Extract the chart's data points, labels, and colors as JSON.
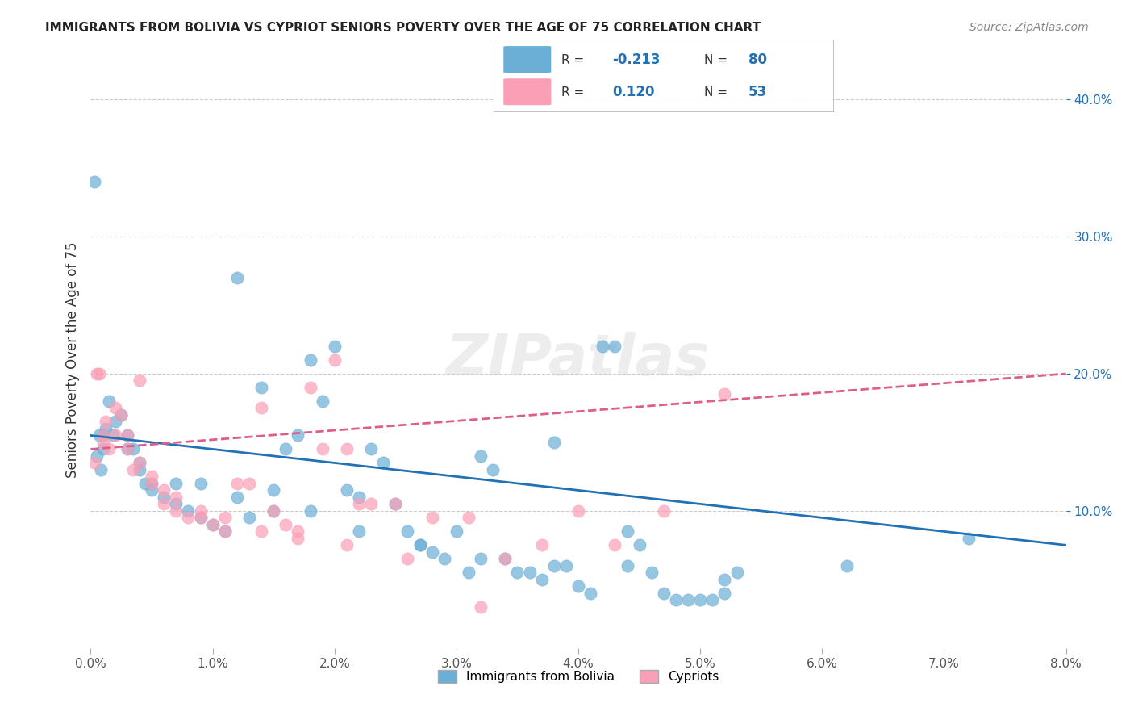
{
  "title": "IMMIGRANTS FROM BOLIVIA VS CYPRIOT SENIORS POVERTY OVER THE AGE OF 75 CORRELATION CHART",
  "source": "Source: ZipAtlas.com",
  "ylabel": "Seniors Poverty Over the Age of 75",
  "xlabel_ticks": [
    "0.0%",
    "1.0%",
    "2.0%",
    "3.0%",
    "4.0%",
    "5.0%",
    "6.0%",
    "7.0%",
    "8.0%"
  ],
  "ylabel_right_ticks": [
    "10.0%",
    "20.0%",
    "30.0%",
    "40.0%"
  ],
  "xmin": 0.0,
  "xmax": 0.08,
  "ymin": 0.0,
  "ymax": 0.42,
  "legend_label_blue": "Immigrants from Bolivia",
  "legend_label_pink": "Cypriots",
  "R_blue": -0.213,
  "N_blue": 80,
  "R_pink": 0.12,
  "N_pink": 53,
  "color_blue": "#6baed6",
  "color_pink": "#fa9fb5",
  "color_text_blue": "#2171b5",
  "color_text_pink": "#e05c8a",
  "title_fontsize": 11,
  "watermark": "ZIPatlas",
  "blue_scatter_x": [
    0.0005,
    0.001,
    0.0008,
    0.0012,
    0.0015,
    0.002,
    0.0025,
    0.003,
    0.0035,
    0.004,
    0.0045,
    0.005,
    0.006,
    0.007,
    0.008,
    0.009,
    0.01,
    0.011,
    0.012,
    0.013,
    0.014,
    0.015,
    0.016,
    0.017,
    0.018,
    0.019,
    0.02,
    0.021,
    0.022,
    0.023,
    0.024,
    0.025,
    0.026,
    0.027,
    0.028,
    0.029,
    0.03,
    0.031,
    0.032,
    0.033,
    0.034,
    0.035,
    0.036,
    0.037,
    0.038,
    0.039,
    0.04,
    0.041,
    0.042,
    0.043,
    0.044,
    0.045,
    0.046,
    0.047,
    0.048,
    0.049,
    0.05,
    0.051,
    0.052,
    0.053,
    0.0003,
    0.0007,
    0.001,
    0.0018,
    0.003,
    0.004,
    0.005,
    0.007,
    0.009,
    0.012,
    0.015,
    0.018,
    0.022,
    0.027,
    0.032,
    0.038,
    0.044,
    0.052,
    0.062,
    0.072
  ],
  "blue_scatter_y": [
    0.14,
    0.155,
    0.13,
    0.16,
    0.18,
    0.165,
    0.17,
    0.155,
    0.145,
    0.13,
    0.12,
    0.115,
    0.11,
    0.105,
    0.1,
    0.095,
    0.09,
    0.085,
    0.27,
    0.095,
    0.19,
    0.115,
    0.145,
    0.155,
    0.21,
    0.18,
    0.22,
    0.115,
    0.11,
    0.145,
    0.135,
    0.105,
    0.085,
    0.075,
    0.07,
    0.065,
    0.085,
    0.055,
    0.14,
    0.13,
    0.065,
    0.055,
    0.055,
    0.05,
    0.15,
    0.06,
    0.045,
    0.04,
    0.22,
    0.22,
    0.085,
    0.075,
    0.055,
    0.04,
    0.035,
    0.035,
    0.035,
    0.035,
    0.04,
    0.055,
    0.34,
    0.155,
    0.145,
    0.155,
    0.145,
    0.135,
    0.12,
    0.12,
    0.12,
    0.11,
    0.1,
    0.1,
    0.085,
    0.075,
    0.065,
    0.06,
    0.06,
    0.05,
    0.06,
    0.08
  ],
  "pink_scatter_x": [
    0.0003,
    0.0005,
    0.0007,
    0.001,
    0.0012,
    0.0015,
    0.002,
    0.0025,
    0.003,
    0.0035,
    0.004,
    0.005,
    0.006,
    0.007,
    0.008,
    0.009,
    0.01,
    0.011,
    0.012,
    0.013,
    0.014,
    0.015,
    0.016,
    0.017,
    0.018,
    0.019,
    0.02,
    0.021,
    0.022,
    0.023,
    0.025,
    0.028,
    0.031,
    0.034,
    0.037,
    0.04,
    0.043,
    0.047,
    0.052,
    0.001,
    0.002,
    0.003,
    0.004,
    0.005,
    0.006,
    0.007,
    0.009,
    0.011,
    0.014,
    0.017,
    0.021,
    0.026,
    0.032
  ],
  "pink_scatter_y": [
    0.135,
    0.2,
    0.2,
    0.155,
    0.165,
    0.145,
    0.175,
    0.17,
    0.155,
    0.13,
    0.195,
    0.12,
    0.105,
    0.1,
    0.095,
    0.095,
    0.09,
    0.085,
    0.12,
    0.12,
    0.175,
    0.1,
    0.09,
    0.085,
    0.19,
    0.145,
    0.21,
    0.145,
    0.105,
    0.105,
    0.105,
    0.095,
    0.095,
    0.065,
    0.075,
    0.1,
    0.075,
    0.1,
    0.185,
    0.15,
    0.155,
    0.145,
    0.135,
    0.125,
    0.115,
    0.11,
    0.1,
    0.095,
    0.085,
    0.08,
    0.075,
    0.065,
    0.03
  ]
}
